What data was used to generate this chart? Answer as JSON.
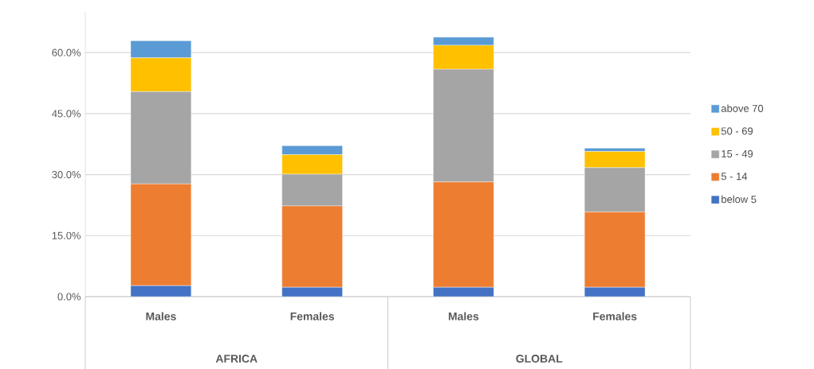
{
  "chart_data": {
    "type": "bar",
    "stacked": true,
    "categories": [
      "Males",
      "Females",
      "Males",
      "Females"
    ],
    "annotations": [
      "AFRICA",
      "GLOBAL"
    ],
    "series": [
      {
        "name": "below 5",
        "color": "#4472c4",
        "values": [
          2.7,
          2.3,
          2.3,
          2.3
        ]
      },
      {
        "name": "5 - 14",
        "color": "#ed7d31",
        "values": [
          25.0,
          20.0,
          25.9,
          18.5
        ]
      },
      {
        "name": "15 - 49",
        "color": "#a5a5a5",
        "values": [
          22.7,
          7.8,
          27.7,
          10.9
        ]
      },
      {
        "name": "50 - 69",
        "color": "#ffc000",
        "values": [
          8.3,
          4.8,
          5.9,
          4.0
        ]
      },
      {
        "name": "above 70",
        "color": "#5b9bd5",
        "values": [
          4.2,
          2.2,
          2.0,
          0.8
        ]
      }
    ],
    "ylim": [
      0,
      70
    ],
    "yticks": [
      {
        "value": 0,
        "label": "0.0%"
      },
      {
        "value": 15,
        "label": "15.0%"
      },
      {
        "value": 30,
        "label": "30.0%"
      },
      {
        "value": 45,
        "label": "45.0%"
      },
      {
        "value": 60,
        "label": "60.0%"
      }
    ],
    "grid": "y",
    "legend": "right"
  }
}
